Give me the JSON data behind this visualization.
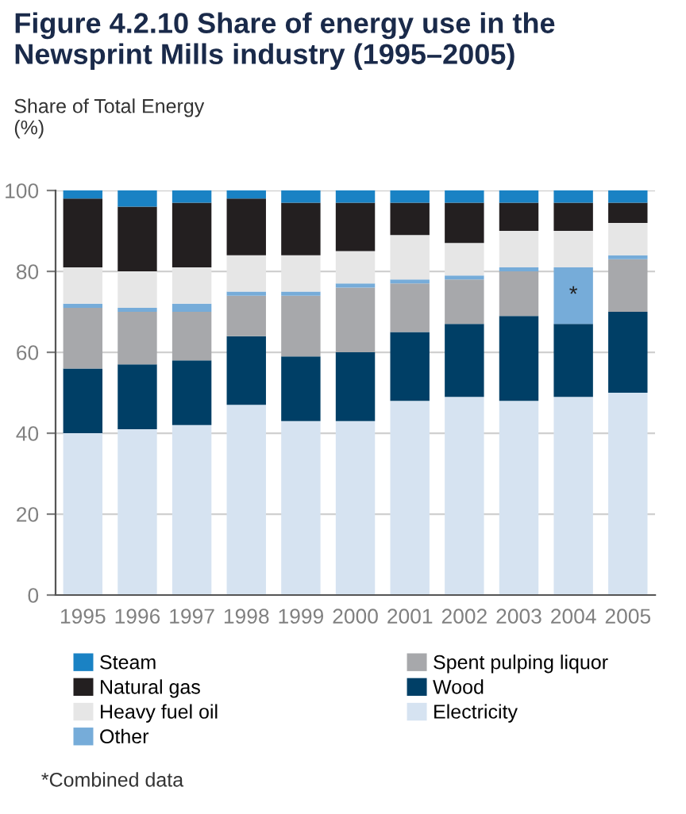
{
  "chart_data": {
    "type": "bar",
    "title": "Figure 4.2.10 Share of energy use in the Newsprint Mills industry (1995–2005)",
    "ylabel": "Share of Total Energy\n(%)",
    "categories": [
      "1995",
      "1996",
      "1997",
      "1998",
      "1999",
      "2000",
      "2001",
      "2002",
      "2003",
      "2004",
      "2005"
    ],
    "stacked": true,
    "series": [
      {
        "name": "Electricity",
        "color": "#d6e3f1",
        "values": [
          40,
          41,
          42,
          47,
          43,
          43,
          48,
          49,
          48,
          49,
          50
        ]
      },
      {
        "name": "Wood",
        "color": "#003f66",
        "values": [
          16,
          16,
          16,
          17,
          16,
          17,
          17,
          18,
          21,
          18,
          20
        ]
      },
      {
        "name": "Spent pulping liquor",
        "color": "#a7a8ab",
        "values": [
          15,
          13,
          12,
          10,
          15,
          16,
          12,
          11,
          11,
          0,
          13
        ]
      },
      {
        "name": "Other",
        "color": "#76acd9",
        "values": [
          1,
          1,
          2,
          1,
          1,
          1,
          1,
          1,
          1,
          14,
          1
        ]
      },
      {
        "name": "Heavy fuel oil",
        "color": "#e6e6e6",
        "values": [
          9,
          9,
          9,
          9,
          9,
          8,
          11,
          8,
          9,
          9,
          8
        ]
      },
      {
        "name": "Natural gas",
        "color": "#231f20",
        "values": [
          17,
          16,
          16,
          14,
          13,
          12,
          8,
          10,
          7,
          7,
          5
        ]
      },
      {
        "name": "Steam",
        "color": "#1a82c4",
        "values": [
          2,
          4,
          3,
          2,
          3,
          3,
          3,
          3,
          3,
          3,
          3
        ]
      }
    ],
    "ylim": [
      0,
      100
    ],
    "yticks": [
      0,
      20,
      40,
      60,
      80,
      100
    ],
    "grid": "y",
    "legend": "bottom",
    "annotations": [
      "*",
      "*Combined data"
    ]
  }
}
